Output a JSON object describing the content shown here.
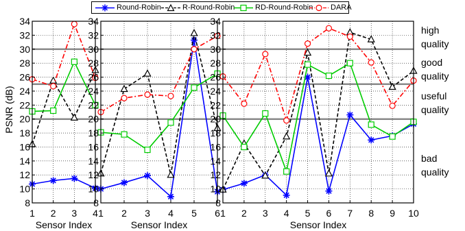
{
  "chart_data": {
    "type": "line",
    "ylabel": "PSNR (dB)",
    "xlabel": "Sensor Index",
    "ylim": [
      8,
      34
    ],
    "yticks": [
      8,
      10,
      12,
      14,
      16,
      18,
      20,
      22,
      24,
      26,
      28,
      30,
      32,
      34
    ],
    "grid": true,
    "legend_position": "top",
    "legend": [
      {
        "name": "Round-Robin",
        "color": "#0000ff",
        "marker": "star",
        "dash": "solid"
      },
      {
        "name": "R-Round-Robin",
        "color": "#000000",
        "marker": "triangle",
        "dash": "dashed"
      },
      {
        "name": "RD-Round-Robin",
        "color": "#00cc00",
        "marker": "square",
        "dash": "solid"
      },
      {
        "name": "DARA",
        "color": "#ff0000",
        "marker": "circle",
        "dash": "dashdot"
      }
    ],
    "threshold_lines": [
      20,
      25,
      30
    ],
    "quality_labels": [
      {
        "line1": "high",
        "line2": "quality"
      },
      {
        "line1": "good",
        "line2": "quality"
      },
      {
        "line1": "useful",
        "line2": "quality"
      },
      {
        "line1": "bad",
        "line2": "quality"
      }
    ],
    "panels": [
      {
        "x": [
          1,
          2,
          3,
          4
        ],
        "xlim": [
          1,
          4
        ],
        "series": [
          {
            "name": "Round-Robin",
            "values": [
              10.7,
              11.2,
              11.5,
              10.1
            ]
          },
          {
            "name": "R-Round-Robin",
            "values": [
              16.4,
              25.5,
              20.2,
              27.0
            ]
          },
          {
            "name": "RD-Round-Robin",
            "values": [
              21.1,
              21.2,
              28.2,
              22.0
            ]
          },
          {
            "name": "DARA",
            "values": [
              25.7,
              24.7,
              33.6,
              25.9
            ]
          }
        ]
      },
      {
        "x": [
          1,
          2,
          3,
          4,
          5,
          6
        ],
        "xlim": [
          1,
          6
        ],
        "series": [
          {
            "name": "Round-Robin",
            "values": [
              10.0,
              10.9,
              11.9,
              8.9,
              31.3,
              9.6
            ]
          },
          {
            "name": "R-Round-Robin",
            "values": [
              12.2,
              24.3,
              26.5,
              12.0,
              32.3,
              18.7
            ]
          },
          {
            "name": "RD-Round-Robin",
            "values": [
              18.1,
              17.8,
              15.6,
              19.5,
              24.5,
              26.5
            ]
          },
          {
            "name": "DARA",
            "values": [
              21.0,
              23.0,
              23.5,
              23.3,
              30.0,
              31.9
            ]
          }
        ]
      },
      {
        "x": [
          1,
          2,
          3,
          4,
          5,
          6,
          7,
          8,
          9,
          10
        ],
        "xlim": [
          1,
          10
        ],
        "series": [
          {
            "name": "Round-Robin",
            "values": [
              9.9,
              10.8,
              12.0,
              9.1,
              26.0,
              9.7,
              20.6,
              17.0,
              17.6,
              19.3
            ]
          },
          {
            "name": "R-Round-Robin",
            "values": [
              9.9,
              16.5,
              11.9,
              17.5,
              29.5,
              12.2,
              32.4,
              31.4,
              24.6,
              26.9
            ]
          },
          {
            "name": "RD-Round-Robin",
            "values": [
              20.5,
              16.0,
              20.8,
              12.5,
              27.8,
              26.2,
              28.0,
              19.2,
              17.5,
              19.6
            ]
          },
          {
            "name": "DARA",
            "values": [
              26.1,
              22.2,
              29.3,
              19.8,
              30.8,
              33.0,
              31.8,
              28.1,
              21.9,
              25.5
            ]
          }
        ]
      }
    ]
  }
}
